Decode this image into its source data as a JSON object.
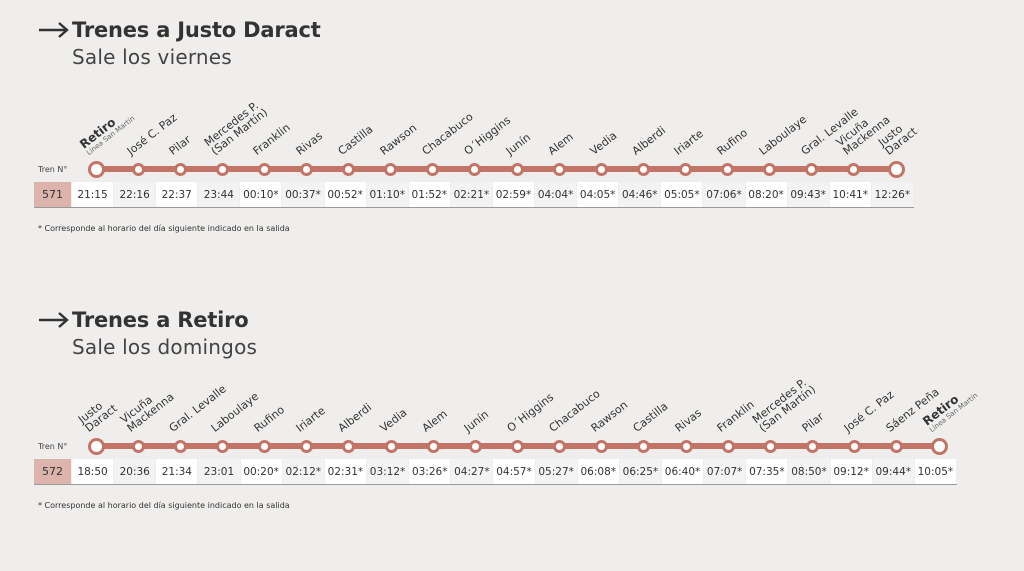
{
  "sections": [
    {
      "title": "Trenes a Justo Daract",
      "subtitle": "Sale los viernes",
      "tren_label": "Tren N°",
      "train_number": "571",
      "stops": [
        {
          "name": "Retiro",
          "sub": "Línea San Martín",
          "bold": true
        },
        {
          "name": "José C. Paz"
        },
        {
          "name": "Pilar"
        },
        {
          "name": "Mercedes P.\n(San Martín)"
        },
        {
          "name": "Franklin"
        },
        {
          "name": "Rivas"
        },
        {
          "name": "Castilla"
        },
        {
          "name": "Rawson"
        },
        {
          "name": "Chacabuco"
        },
        {
          "name": "O´Higgins"
        },
        {
          "name": "Junín"
        },
        {
          "name": "Alem"
        },
        {
          "name": "Vedia"
        },
        {
          "name": "Alberdi"
        },
        {
          "name": "Iriarte"
        },
        {
          "name": "Rufino"
        },
        {
          "name": "Laboulaye"
        },
        {
          "name": "Gral. Levalle"
        },
        {
          "name": "Vicuña\nMackenna"
        },
        {
          "name": "Justo\nDaract"
        }
      ],
      "times": [
        "21:15",
        "22:16",
        "22:37",
        "23:44",
        "00:10*",
        "00:37*",
        "00:52*",
        "01:10*",
        "01:52*",
        "02:21*",
        "02:59*",
        "04:04*",
        "04:05*",
        "04:46*",
        "05:05*",
        "07:06*",
        "08:20*",
        "09:43*",
        "10:41*",
        "12:26*"
      ],
      "note": "* Corresponde al horario del día siguiente indicado en la salida"
    },
    {
      "title": "Trenes a Retiro",
      "subtitle": "Sale los domingos",
      "tren_label": "Tren N°",
      "train_number": "572",
      "stops": [
        {
          "name": "Justo\nDaract"
        },
        {
          "name": "Vicuña\nMackenna"
        },
        {
          "name": "Gral. Levalle"
        },
        {
          "name": "Laboulaye"
        },
        {
          "name": "Rufino"
        },
        {
          "name": "Iriarte"
        },
        {
          "name": "Alberdi"
        },
        {
          "name": "Vedia"
        },
        {
          "name": "Alem"
        },
        {
          "name": "Junín"
        },
        {
          "name": "O´Higgins"
        },
        {
          "name": "Chacabuco"
        },
        {
          "name": "Rawson"
        },
        {
          "name": "Castilla"
        },
        {
          "name": "Rivas"
        },
        {
          "name": "Franklin"
        },
        {
          "name": "Mercedes P.\n(San Martín)"
        },
        {
          "name": "Pilar"
        },
        {
          "name": "José C. Paz"
        },
        {
          "name": "Sáenz Peña"
        },
        {
          "name": "Retiro",
          "sub": "Línea San Martín",
          "bold": true
        }
      ],
      "times": [
        "18:50",
        "20:36",
        "21:34",
        "23:01",
        "00:20*",
        "02:12*",
        "02:31*",
        "03:12*",
        "03:26*",
        "04:27*",
        "04:57*",
        "05:27*",
        "06:08*",
        "06:25*",
        "06:40*",
        "07:07*",
        "07:35*",
        "08:50*",
        "09:12*",
        "09:44*",
        "10:05*"
      ],
      "note": "* Corresponde al horario del día siguiente indicado en la salida"
    }
  ],
  "colors": {
    "line": "#c27467",
    "train_number_bg": "#dcb4ac",
    "background": "#efeeed"
  }
}
